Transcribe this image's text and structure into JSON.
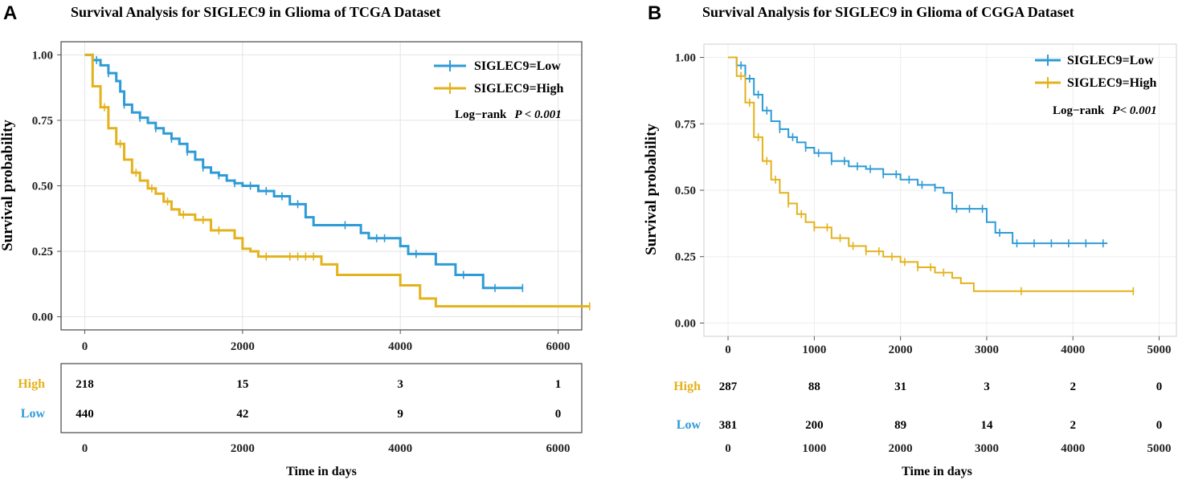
{
  "colors": {
    "low": "#2E9BD6",
    "high": "#E3B21C"
  },
  "chart_data": [
    {
      "type": "line",
      "panel": "A",
      "title": "Survival  Analysis for SIGLEC9 in Glioma of TCGA Dataset",
      "xlabel": "Time in days",
      "ylabel": "Survival probability",
      "xlim": [
        -300,
        6300
      ],
      "ylim": [
        -0.05,
        1.05
      ],
      "xticks": [
        0,
        2000,
        4000,
        6000
      ],
      "yticks": [
        0,
        0.25,
        0.5,
        0.75,
        1.0
      ],
      "ytick_labels": [
        "0.00",
        "0.25",
        "0.50",
        "0.75",
        "1.00"
      ],
      "legend": {
        "placement": "top-right",
        "entries": [
          "SIGLEC9=Low",
          "SIGLEC9=High"
        ]
      },
      "logrank_label": "Log−rank",
      "p_value": "P < 0.001",
      "series": [
        {
          "name": "SIGLEC9=Low",
          "color_key": "low",
          "x": [
            0,
            100,
            200,
            300,
            400,
            450,
            500,
            600,
            700,
            800,
            900,
            1000,
            1100,
            1200,
            1300,
            1400,
            1500,
            1600,
            1700,
            1800,
            1900,
            2000,
            2200,
            2400,
            2600,
            2800,
            2900,
            3000,
            3200,
            3400,
            3500,
            3600,
            3900,
            4000,
            4100,
            4400,
            4450,
            4700,
            5000,
            5050,
            5500,
            5550
          ],
          "y": [
            1.0,
            0.98,
            0.96,
            0.93,
            0.9,
            0.86,
            0.81,
            0.78,
            0.76,
            0.74,
            0.72,
            0.7,
            0.68,
            0.66,
            0.63,
            0.6,
            0.57,
            0.55,
            0.54,
            0.52,
            0.51,
            0.5,
            0.48,
            0.46,
            0.43,
            0.38,
            0.35,
            0.35,
            0.35,
            0.35,
            0.32,
            0.3,
            0.3,
            0.27,
            0.24,
            0.24,
            0.2,
            0.16,
            0.16,
            0.11,
            0.11,
            0.11
          ],
          "censor_x": [
            150,
            300,
            500,
            700,
            900,
            1100,
            1300,
            1500,
            1700,
            1900,
            2100,
            2300,
            2500,
            2700,
            3300,
            3700,
            3800,
            4200,
            4800,
            5200,
            5550
          ]
        },
        {
          "name": "SIGLEC9=High",
          "color_key": "high",
          "x": [
            0,
            100,
            200,
            300,
            400,
            500,
            600,
            700,
            800,
            900,
            1000,
            1100,
            1200,
            1400,
            1600,
            1800,
            1900,
            2000,
            2100,
            2200,
            2300,
            2400,
            3000,
            3200,
            3400,
            3600,
            4000,
            4200,
            4250,
            4400,
            4450,
            6400
          ],
          "y": [
            1.0,
            0.88,
            0.8,
            0.72,
            0.66,
            0.6,
            0.55,
            0.52,
            0.49,
            0.47,
            0.44,
            0.41,
            0.39,
            0.37,
            0.33,
            0.33,
            0.3,
            0.26,
            0.25,
            0.23,
            0.23,
            0.23,
            0.2,
            0.16,
            0.16,
            0.16,
            0.12,
            0.12,
            0.07,
            0.07,
            0.04,
            0.04
          ],
          "censor_x": [
            250,
            450,
            650,
            850,
            1050,
            1250,
            1500,
            1700,
            2300,
            2600,
            2700,
            2800,
            2900,
            6400
          ]
        }
      ],
      "risk_table": {
        "rows": [
          {
            "label": "High",
            "color_key": "high",
            "values": [
              "218",
              "15",
              "3",
              "1"
            ]
          },
          {
            "label": "Low",
            "color_key": "low",
            "values": [
              "440",
              "42",
              "9",
              "0"
            ]
          }
        ]
      }
    },
    {
      "type": "line",
      "panel": "B",
      "title": "Survival  Analysis for SIGLEC9 in Glioma of CGGA Dataset",
      "xlabel": "Time in days",
      "ylabel": "Survival probability",
      "xlim": [
        -280,
        5200
      ],
      "ylim": [
        -0.05,
        1.05
      ],
      "xticks": [
        0,
        1000,
        2000,
        3000,
        4000,
        5000
      ],
      "yticks": [
        0,
        0.25,
        0.5,
        0.75,
        1.0
      ],
      "ytick_labels": [
        "0.00",
        "0.25",
        "0.50",
        "0.75",
        "1.00"
      ],
      "legend": {
        "placement": "top-right",
        "entries": [
          "SIGLEC9=Low",
          "SIGLEC9=High"
        ]
      },
      "logrank_label": "Log−rank",
      "p_value": "P< 0.001",
      "series": [
        {
          "name": "SIGLEC9=Low",
          "color_key": "low",
          "x": [
            0,
            100,
            200,
            300,
            400,
            500,
            600,
            700,
            800,
            900,
            1000,
            1200,
            1400,
            1600,
            1800,
            2000,
            2200,
            2400,
            2500,
            2600,
            2700,
            2900,
            3000,
            3100,
            3200,
            3300,
            3400,
            4400
          ],
          "y": [
            1.0,
            0.97,
            0.92,
            0.86,
            0.8,
            0.76,
            0.73,
            0.7,
            0.68,
            0.66,
            0.64,
            0.61,
            0.59,
            0.58,
            0.56,
            0.54,
            0.52,
            0.51,
            0.49,
            0.43,
            0.43,
            0.43,
            0.38,
            0.34,
            0.34,
            0.3,
            0.3,
            0.3
          ],
          "censor_x": [
            150,
            250,
            350,
            450,
            600,
            750,
            900,
            1050,
            1200,
            1350,
            1500,
            1650,
            1800,
            1950,
            2100,
            2250,
            2400,
            2650,
            2800,
            2950,
            3150,
            3350,
            3550,
            3750,
            3950,
            4150,
            4350
          ]
        },
        {
          "name": "SIGLEC9=High",
          "color_key": "high",
          "x": [
            0,
            100,
            200,
            300,
            400,
            500,
            600,
            700,
            800,
            900,
            1000,
            1200,
            1400,
            1600,
            1800,
            2000,
            2200,
            2400,
            2600,
            2700,
            2800,
            2850,
            4700
          ],
          "y": [
            1.0,
            0.93,
            0.83,
            0.7,
            0.61,
            0.54,
            0.49,
            0.45,
            0.41,
            0.38,
            0.36,
            0.32,
            0.29,
            0.27,
            0.25,
            0.23,
            0.21,
            0.19,
            0.17,
            0.15,
            0.15,
            0.12,
            0.12
          ],
          "censor_x": [
            150,
            250,
            350,
            450,
            550,
            700,
            850,
            1000,
            1150,
            1300,
            1450,
            1600,
            1750,
            1900,
            2050,
            2200,
            2350,
            2500,
            3400,
            4700
          ]
        }
      ],
      "risk_table": {
        "rows": [
          {
            "label": "High",
            "color_key": "high",
            "values": [
              "287",
              "88",
              "31",
              "3",
              "2",
              "0"
            ]
          },
          {
            "label": "Low",
            "color_key": "low",
            "values": [
              "381",
              "200",
              "89",
              "14",
              "2",
              "0"
            ]
          }
        ]
      }
    }
  ]
}
